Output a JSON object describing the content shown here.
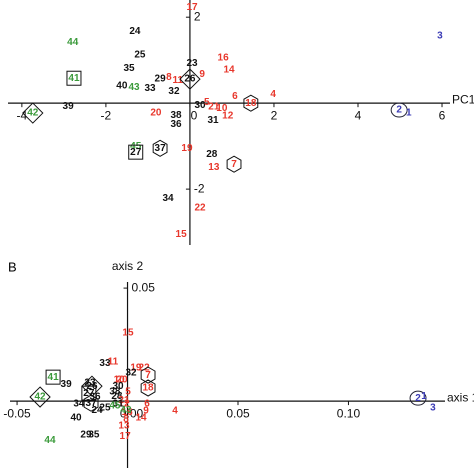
{
  "panel_label": "B",
  "chart_data": [
    {
      "type": "scatter",
      "xlabel": "PC1",
      "xlim": [
        -4.33,
        6.19
      ],
      "ylim": [
        -3.3,
        2.4
      ],
      "xticks": [
        -4,
        -2,
        0,
        2,
        4,
        6
      ],
      "yticks": [
        2,
        -2
      ],
      "points": [
        {
          "label": "17",
          "x": 0.05,
          "y": 2.23,
          "color": "#e8372c"
        },
        {
          "label": "3",
          "x": 5.95,
          "y": 1.56,
          "color": "#3b3bb5"
        },
        {
          "label": "44",
          "x": -2.79,
          "y": 1.42,
          "color": "#3a9a3a"
        },
        {
          "label": "24",
          "x": -1.31,
          "y": 1.67,
          "color": "#111111"
        },
        {
          "label": "25",
          "x": -1.19,
          "y": 1.12,
          "color": "#111111"
        },
        {
          "label": "16",
          "x": 0.79,
          "y": 1.05,
          "color": "#e8372c"
        },
        {
          "label": "23",
          "x": 0.05,
          "y": 0.93,
          "color": "#111111"
        },
        {
          "label": "14",
          "x": 0.93,
          "y": 0.77,
          "color": "#e8372c"
        },
        {
          "label": "35",
          "x": -1.45,
          "y": 0.81,
          "color": "#111111"
        },
        {
          "label": "29",
          "x": -0.71,
          "y": 0.56,
          "color": "#111111"
        },
        {
          "label": "8",
          "x": -0.5,
          "y": 0.6,
          "color": "#e8372c"
        },
        {
          "label": "11",
          "x": -0.29,
          "y": 0.53,
          "color": "#e8372c"
        },
        {
          "label": "9",
          "x": 0.29,
          "y": 0.67,
          "color": "#e8372c"
        },
        {
          "label": "41",
          "x": -2.76,
          "y": 0.58,
          "color": "#3a9a3a",
          "shape": "square"
        },
        {
          "label": "26",
          "x": 0,
          "y": 0.56,
          "color": "#111111",
          "shape": "diamond"
        },
        {
          "label": "40",
          "x": -1.62,
          "y": 0.4,
          "color": "#111111"
        },
        {
          "label": "43",
          "x": -1.33,
          "y": 0.37,
          "color": "#3a9a3a"
        },
        {
          "label": "33",
          "x": -0.95,
          "y": 0.35,
          "color": "#111111"
        },
        {
          "label": "32",
          "x": -0.38,
          "y": 0.28,
          "color": "#111111"
        },
        {
          "label": "4",
          "x": 1.98,
          "y": 0.21,
          "color": "#e8372c"
        },
        {
          "label": "6",
          "x": 1.07,
          "y": 0.16,
          "color": "#e8372c"
        },
        {
          "label": "39",
          "x": -2.9,
          "y": -0.07,
          "color": "#111111"
        },
        {
          "label": "42",
          "x": -3.74,
          "y": -0.23,
          "color": "#3a9a3a",
          "shape": "diamond"
        },
        {
          "label": "30",
          "x": 0.24,
          "y": -0.05,
          "color": "#111111"
        },
        {
          "label": "5",
          "x": 0.4,
          "y": 0.02,
          "color": "#e8372c"
        },
        {
          "label": "21",
          "x": 0.57,
          "y": -0.09,
          "color": "#e8372c"
        },
        {
          "label": "10",
          "x": 0.76,
          "y": -0.12,
          "color": "#e8372c"
        },
        {
          "label": "18",
          "x": 1.45,
          "y": 0,
          "color": "#e8372c",
          "shape": "hexagon"
        },
        {
          "label": "2",
          "x": 4.98,
          "y": -0.16,
          "color": "#3b3bb5",
          "shape": "ellipse"
        },
        {
          "label": "1",
          "x": 5.21,
          "y": -0.23,
          "color": "#3b3bb5"
        },
        {
          "label": "38",
          "x": -0.33,
          "y": -0.28,
          "color": "#111111"
        },
        {
          "label": "20",
          "x": -0.81,
          "y": -0.23,
          "color": "#e8372c"
        },
        {
          "label": "31",
          "x": 0.55,
          "y": -0.4,
          "color": "#111111"
        },
        {
          "label": "12",
          "x": 0.9,
          "y": -0.3,
          "color": "#e8372c"
        },
        {
          "label": "36",
          "x": -0.33,
          "y": -0.49,
          "color": "#111111"
        },
        {
          "label": "45",
          "x": -1.29,
          "y": -1.0,
          "color": "#3a9a3a"
        },
        {
          "label": "27",
          "x": -1.29,
          "y": -1.14,
          "color": "#111111",
          "shape": "square"
        },
        {
          "label": "37",
          "x": -0.71,
          "y": -1.05,
          "color": "#111111",
          "shape": "hexagon"
        },
        {
          "label": "19",
          "x": -0.07,
          "y": -1.05,
          "color": "#e8372c"
        },
        {
          "label": "28",
          "x": 0.52,
          "y": -1.19,
          "color": "#111111"
        },
        {
          "label": "7",
          "x": 1.05,
          "y": -1.42,
          "color": "#e8372c",
          "shape": "hexagon"
        },
        {
          "label": "13",
          "x": 0.57,
          "y": -1.49,
          "color": "#e8372c"
        },
        {
          "label": "34",
          "x": -0.52,
          "y": -2.21,
          "color": "#111111"
        },
        {
          "label": "22",
          "x": 0.24,
          "y": -2.44,
          "color": "#e8372c"
        },
        {
          "label": "15",
          "x": -0.21,
          "y": -3.05,
          "color": "#e8372c"
        }
      ]
    },
    {
      "type": "scatter",
      "xlabel": "axis 1",
      "ylabel": "axis 2",
      "xlim": [
        -0.0532,
        0.1437
      ],
      "ylim": [
        -0.0296,
        0.0527
      ],
      "xticks": [
        -0.05,
        {
          "value": 0,
          "label": "0.00"
        },
        0.05,
        {
          "value": 0.1,
          "label": "0.10"
        }
      ],
      "yticks": [
        0.05
      ],
      "points": [
        {
          "label": "15",
          "x": 0.0002,
          "y": 0.0301,
          "color": "#e8372c"
        },
        {
          "label": "33",
          "x": -0.0102,
          "y": 0.0168,
          "color": "#111111"
        },
        {
          "label": "11",
          "x": -0.0066,
          "y": 0.0173,
          "color": "#e8372c"
        },
        {
          "label": "19",
          "x": 0.0038,
          "y": 0.0146,
          "color": "#e8372c"
        },
        {
          "label": "22",
          "x": 0.0075,
          "y": 0.0146,
          "color": "#e8372c"
        },
        {
          "label": "32",
          "x": 0.0016,
          "y": 0.0124,
          "color": "#111111"
        },
        {
          "label": "7",
          "x": 0.0093,
          "y": 0.0115,
          "color": "#e8372c",
          "shape": "hexagon"
        },
        {
          "label": "10",
          "x": -0.0038,
          "y": 0.0093,
          "color": "#e8372c"
        },
        {
          "label": "20",
          "x": -0.0025,
          "y": 0.0093,
          "color": "#e8372c"
        },
        {
          "label": "41",
          "x": -0.0337,
          "y": 0.0106,
          "color": "#3a9a3a",
          "shape": "square"
        },
        {
          "label": "39",
          "x": -0.0278,
          "y": 0.0075,
          "color": "#111111"
        },
        {
          "label": "23",
          "x": -0.017,
          "y": 0.008,
          "color": "#111111"
        },
        {
          "label": "26",
          "x": -0.0161,
          "y": 0.0066,
          "color": "#111111",
          "shape": "diamond"
        },
        {
          "label": "30",
          "x": -0.0043,
          "y": 0.0066,
          "color": "#111111"
        },
        {
          "label": "38",
          "x": -0.0057,
          "y": 0.004,
          "color": "#111111"
        },
        {
          "label": "28",
          "x": -0.0048,
          "y": 0.0022,
          "color": "#111111"
        },
        {
          "label": "18",
          "x": 0.0093,
          "y": 0.0058,
          "color": "#e8372c",
          "shape": "hexagon"
        },
        {
          "label": "5",
          "x": 0.0002,
          "y": 0.004,
          "color": "#e8372c"
        },
        {
          "label": "42",
          "x": -0.0396,
          "y": 0.0018,
          "color": "#3a9a3a",
          "shape": "diamond"
        },
        {
          "label": "2",
          "x": 0.1315,
          "y": 0.0013,
          "color": "#3b3bb5",
          "shape": "ellipse"
        },
        {
          "label": "1",
          "x": 0.1342,
          "y": 0.0022,
          "color": "#3b3bb5"
        },
        {
          "label": "3",
          "x": 0.1382,
          "y": -0.0031,
          "color": "#3b3bb5"
        },
        {
          "label": "36",
          "x": -0.0147,
          "y": 0.0018,
          "color": "#111111"
        },
        {
          "label": "27",
          "x": -0.0175,
          "y": 0.0035,
          "color": "#111111",
          "shape": "square"
        },
        {
          "label": "37",
          "x": -0.0165,
          "y": -0.0009,
          "color": "#111111",
          "shape": "hexagon"
        },
        {
          "label": "34",
          "x": -0.022,
          "y": -0.0013,
          "color": "#111111"
        },
        {
          "label": "21",
          "x": -0.0016,
          "y": 0.0004,
          "color": "#e8372c"
        },
        {
          "label": "12",
          "x": -0.0016,
          "y": -0.0013,
          "color": "#e8372c"
        },
        {
          "label": "31",
          "x": -0.0043,
          "y": -0.0013,
          "color": "#111111"
        },
        {
          "label": "6",
          "x": 0.0088,
          "y": -0.0013,
          "color": "#e8372c"
        },
        {
          "label": "9",
          "x": 0.0084,
          "y": -0.0044,
          "color": "#e8372c"
        },
        {
          "label": "4",
          "x": 0.0215,
          "y": -0.0044,
          "color": "#e8372c"
        },
        {
          "label": "16",
          "x": -0.0002,
          "y": -0.0049,
          "color": "#e8372c"
        },
        {
          "label": "14",
          "x": 0.0061,
          "y": -0.0075,
          "color": "#e8372c"
        },
        {
          "label": "8",
          "x": -0.0007,
          "y": -0.008,
          "color": "#e8372c"
        },
        {
          "label": "24",
          "x": -0.0138,
          "y": -0.004,
          "color": "#111111"
        },
        {
          "label": "25",
          "x": -0.0102,
          "y": -0.0031,
          "color": "#111111"
        },
        {
          "label": "40",
          "x": -0.0233,
          "y": -0.0075,
          "color": "#111111"
        },
        {
          "label": "45",
          "x": -0.0057,
          "y": -0.0022,
          "color": "#3a9a3a"
        },
        {
          "label": "44",
          "x": -0.0351,
          "y": -0.0173,
          "color": "#3a9a3a"
        },
        {
          "label": "29",
          "x": -0.0188,
          "y": -0.015,
          "color": "#111111"
        },
        {
          "label": "35",
          "x": -0.0152,
          "y": -0.015,
          "color": "#111111"
        },
        {
          "label": "13",
          "x": -0.0016,
          "y": -0.011,
          "color": "#e8372c"
        },
        {
          "label": "17",
          "x": -0.0011,
          "y": -0.0155,
          "color": "#e8372c"
        },
        {
          "label": "43",
          "x": -0.0007,
          "y": -0.004,
          "color": "#3a9a3a"
        }
      ]
    }
  ]
}
